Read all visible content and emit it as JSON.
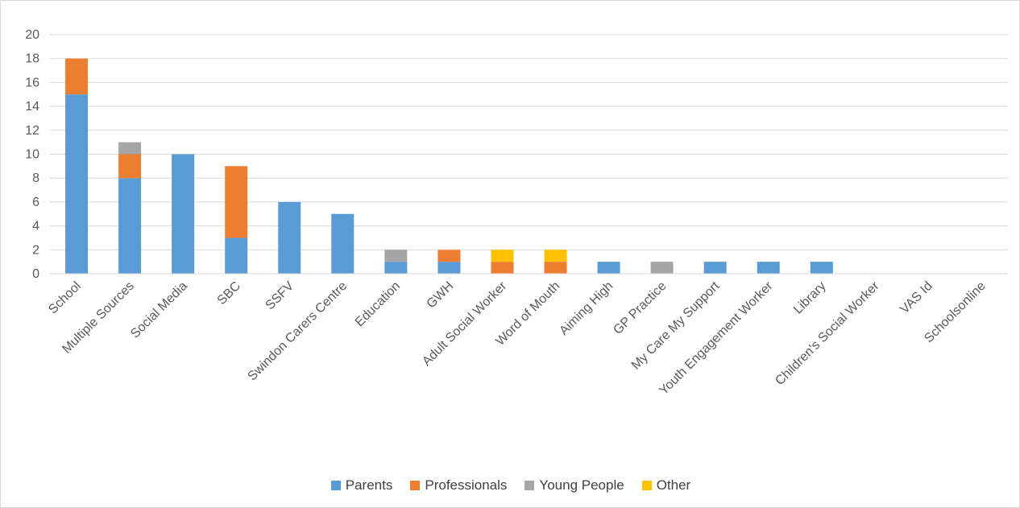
{
  "chart_data": {
    "type": "bar",
    "stacked": true,
    "categories": [
      "School",
      "Multiple Sources",
      "Social Media",
      "SBC",
      "SSFV",
      "Swindon Carers Centre",
      "Education",
      "GWH",
      "Adult Social Worker",
      "Word of Mouth",
      "Aiming High",
      "GP Practice",
      "My Care My Support",
      "Youth Engagement Worker",
      "Library",
      "Children's Social Worker",
      "VAS Id",
      "Schoolsonline"
    ],
    "series": [
      {
        "name": "Parents",
        "color": "#5b9bd5",
        "values": [
          15,
          8,
          10,
          3,
          6,
          5,
          1,
          1,
          0,
          0,
          1,
          0,
          1,
          1,
          1,
          0,
          0,
          0
        ]
      },
      {
        "name": "Professionals",
        "color": "#ed7d31",
        "values": [
          3,
          2,
          0,
          6,
          0,
          0,
          0,
          1,
          1,
          1,
          0,
          0,
          0,
          0,
          0,
          0,
          0,
          0
        ]
      },
      {
        "name": "Young People",
        "color": "#a5a5a5",
        "values": [
          0,
          1,
          0,
          0,
          0,
          0,
          1,
          0,
          0,
          0,
          0,
          1,
          0,
          0,
          0,
          0,
          0,
          0
        ]
      },
      {
        "name": "Other",
        "color": "#ffc000",
        "values": [
          0,
          0,
          0,
          0,
          0,
          0,
          0,
          0,
          1,
          1,
          0,
          0,
          0,
          0,
          0,
          0,
          0,
          0
        ]
      }
    ],
    "ylim": [
      0,
      20
    ],
    "yticks": [
      0,
      2,
      4,
      6,
      8,
      10,
      12,
      14,
      16,
      18,
      20
    ],
    "grid": true,
    "legend": "bottom",
    "title": "",
    "xlabel": "",
    "ylabel": ""
  }
}
